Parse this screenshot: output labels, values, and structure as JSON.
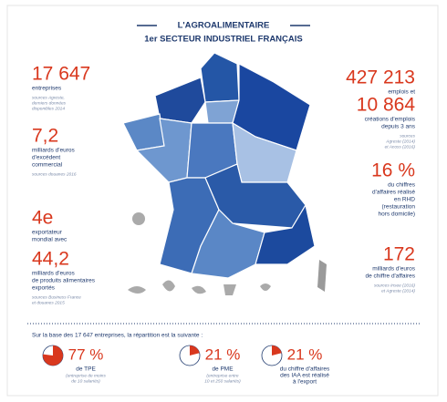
{
  "header": {
    "title": "L'AGROALIMENTAIRE",
    "subtitle": "1er SECTEUR INDUSTRIEL FRANÇAIS"
  },
  "left": [
    {
      "number": "17 647",
      "lines": [
        "entreprises"
      ],
      "source": [
        "sources Agreste,",
        "derniers données",
        "disponibles 2014"
      ]
    },
    {
      "number": "7,2",
      "lines": [
        "milliards d'euros",
        "d'excédent",
        "commercial"
      ],
      "source": [
        "sources douanes 2016"
      ]
    },
    {
      "number": "4e",
      "lines": [
        "exportateur",
        "mondial avec"
      ],
      "source": []
    },
    {
      "number": "44,2",
      "lines": [
        "milliards d'euros",
        "de produits alimentaires",
        "exportés"
      ],
      "source": [
        "sources Business France",
        "et douanes 2015"
      ]
    }
  ],
  "right": [
    {
      "number": "427 213",
      "lines": [
        "emplois et"
      ],
      "source": []
    },
    {
      "number": "10 864",
      "lines": [
        "créations d'emplois",
        "depuis 3 ans"
      ],
      "source": [
        "sources",
        "Agreste (2014)",
        "et Acoss (2016)"
      ]
    },
    {
      "number": "16 %",
      "lines": [
        "du chiffres",
        "d'affaires réalisé",
        "en RHD",
        "(restauration",
        "hors domicile)"
      ],
      "source": []
    },
    {
      "number": "172",
      "lines": [
        "milliards d'euros",
        "de chiffre d'affaires"
      ],
      "source": [
        "sources Insee (2016)",
        "et Agreste (2014)"
      ]
    }
  ],
  "breakdown": {
    "intro": "Sur la base des 17 647 entreprises, la répartition est la suivante :",
    "items": [
      {
        "value": 77,
        "label": "77 %",
        "lines": [
          "de TPE"
        ],
        "note": [
          "(entreprise de moins",
          "de 10 salariés)"
        ]
      },
      {
        "value": 21,
        "label": "21 %",
        "lines": [
          "de PME"
        ],
        "note": [
          "(entreprise entre",
          "10 et 250 salariés)"
        ]
      },
      {
        "value": 21,
        "label": "21 %",
        "lines": [
          "du chiffre d'affaires",
          "des IAA est réalisé",
          "à l'export"
        ],
        "note": []
      }
    ]
  }
}
